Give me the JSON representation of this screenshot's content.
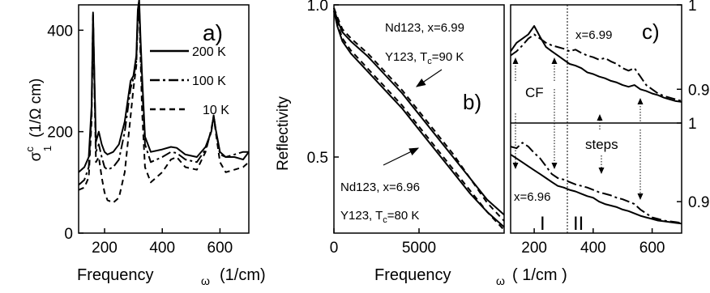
{
  "chart_data": [
    {
      "panel": "a)",
      "type": "line",
      "xlabel": "Frequency",
      "xlabel_symbol": "ω",
      "xlabel_unit": "(1/cm)",
      "ylabel": "σ",
      "ylabel_sub": "1",
      "ylabel_sup": "c",
      "ylabel_unit": "(1/Ω cm)",
      "xlim": [
        110,
        700
      ],
      "ylim": [
        0,
        450
      ],
      "xticks": [
        200,
        400,
        600
      ],
      "yticks": [
        0,
        200,
        400
      ],
      "legend_position": "top-right",
      "series": [
        {
          "name": "200 K",
          "style": "solid",
          "x": [
            110,
            130,
            145,
            155,
            160,
            165,
            170,
            180,
            190,
            200,
            210,
            230,
            250,
            270,
            290,
            300,
            310,
            315,
            320,
            325,
            330,
            340,
            360,
            400,
            430,
            450,
            480,
            520,
            550,
            570,
            578,
            585,
            600,
            620,
            650,
            680,
            700
          ],
          "y": [
            120,
            130,
            150,
            250,
            435,
            300,
            180,
            200,
            175,
            160,
            155,
            160,
            175,
            220,
            300,
            310,
            350,
            440,
            460,
            380,
            310,
            190,
            160,
            165,
            170,
            168,
            155,
            150,
            170,
            200,
            232,
            205,
            160,
            150,
            150,
            145,
            160
          ]
        },
        {
          "name": "100 K",
          "style": "dash-dot",
          "x": [
            110,
            130,
            145,
            155,
            160,
            165,
            170,
            180,
            190,
            200,
            210,
            230,
            250,
            270,
            290,
            300,
            310,
            315,
            320,
            325,
            330,
            340,
            360,
            400,
            430,
            450,
            480,
            520,
            550,
            570,
            578,
            585,
            600,
            620,
            650,
            680,
            700
          ],
          "y": [
            95,
            105,
            130,
            240,
            430,
            290,
            160,
            175,
            150,
            130,
            125,
            130,
            145,
            200,
            285,
            305,
            340,
            430,
            450,
            360,
            290,
            175,
            140,
            150,
            160,
            158,
            145,
            140,
            165,
            200,
            232,
            205,
            155,
            150,
            155,
            160,
            160
          ]
        },
        {
          "name": "10 K",
          "style": "dashed",
          "x": [
            110,
            130,
            145,
            155,
            160,
            165,
            170,
            180,
            190,
            200,
            210,
            230,
            250,
            270,
            290,
            300,
            310,
            315,
            320,
            325,
            330,
            340,
            360,
            400,
            430,
            450,
            480,
            520,
            550,
            570,
            578,
            585,
            600,
            620,
            650,
            680,
            700
          ],
          "y": [
            85,
            90,
            110,
            220,
            425,
            280,
            140,
            150,
            110,
            80,
            65,
            60,
            70,
            120,
            230,
            285,
            330,
            420,
            440,
            340,
            240,
            130,
            100,
            120,
            145,
            150,
            130,
            125,
            160,
            205,
            230,
            200,
            140,
            120,
            125,
            130,
            140
          ]
        }
      ]
    },
    {
      "panel": "b)",
      "type": "line",
      "xlabel": "Frequency",
      "xlabel_symbol": "ω",
      "xlabel_unit": "( 1/cm )",
      "ylabel": "Reflectivity",
      "xlim": [
        0,
        10000
      ],
      "ylim": [
        0.25,
        1.0
      ],
      "xticks": [
        0,
        5000
      ],
      "yticks": [
        0.5,
        1.0
      ],
      "ytick_labels": [
        "0.5",
        "1.0"
      ],
      "annotations": [
        "Nd123, x=6.99",
        "Y123, T",
        "c",
        "=90 K",
        "Nd123, x=6.96",
        "Y123, T",
        "c",
        "=80 K"
      ],
      "series": [
        {
          "name": "Nd123, x=6.99",
          "style": "solid",
          "x": [
            0,
            200,
            500,
            1000,
            2000,
            3000,
            4000,
            5000,
            6000,
            7000,
            8000,
            9000,
            10000
          ],
          "y": [
            0.99,
            0.95,
            0.91,
            0.88,
            0.83,
            0.77,
            0.71,
            0.64,
            0.57,
            0.5,
            0.43,
            0.36,
            0.31
          ]
        },
        {
          "name": "Y123, Tc=90 K",
          "style": "dashed",
          "x": [
            0,
            200,
            500,
            1000,
            2000,
            3000,
            4000,
            5000,
            6000,
            7000,
            8000,
            9000,
            10000
          ],
          "y": [
            0.99,
            0.96,
            0.92,
            0.89,
            0.84,
            0.78,
            0.72,
            0.65,
            0.58,
            0.51,
            0.43,
            0.35,
            0.29
          ]
        },
        {
          "name": "Nd123, x=6.96",
          "style": "solid",
          "x": [
            0,
            200,
            500,
            1000,
            2000,
            3000,
            4000,
            5000,
            6000,
            7000,
            8000,
            9000,
            10000
          ],
          "y": [
            0.98,
            0.93,
            0.88,
            0.84,
            0.78,
            0.72,
            0.66,
            0.59,
            0.52,
            0.45,
            0.38,
            0.32,
            0.27
          ]
        },
        {
          "name": "Y123, Tc=80 K",
          "style": "dashed",
          "x": [
            0,
            200,
            500,
            1000,
            2000,
            3000,
            4000,
            5000,
            6000,
            7000,
            8000,
            9000,
            10000
          ],
          "y": [
            0.98,
            0.94,
            0.89,
            0.85,
            0.79,
            0.73,
            0.67,
            0.6,
            0.53,
            0.46,
            0.39,
            0.32,
            0.26
          ]
        }
      ]
    },
    {
      "panel": "c)",
      "type": "line",
      "xlim": [
        120,
        700
      ],
      "xticks": [
        200,
        400,
        600
      ],
      "annotations": [
        "x=6.99",
        "CF",
        "x=6.96",
        "steps",
        "I",
        "II"
      ],
      "subplots": [
        {
          "position": "upper",
          "ylim": [
            0.86,
            1.0
          ],
          "yticks": [
            0.9,
            1.0
          ],
          "series": [
            {
              "style": "solid",
              "x": [
                120,
                140,
                160,
                180,
                200,
                220,
                240,
                260,
                280,
                300,
                320,
                340,
                360,
                380,
                400,
                420,
                440,
                460,
                480,
                500,
                520,
                540,
                560,
                580,
                600,
                620,
                640,
                660,
                680,
                700
              ],
              "y": [
                0.945,
                0.955,
                0.96,
                0.965,
                0.975,
                0.962,
                0.95,
                0.945,
                0.94,
                0.935,
                0.93,
                0.928,
                0.925,
                0.92,
                0.918,
                0.915,
                0.913,
                0.91,
                0.908,
                0.905,
                0.903,
                0.905,
                0.9,
                0.898,
                0.895,
                0.893,
                0.89,
                0.888,
                0.886,
                0.885
              ]
            },
            {
              "style": "dash-dot",
              "x": [
                120,
                140,
                160,
                180,
                200,
                220,
                240,
                260,
                280,
                300,
                320,
                340,
                360,
                380,
                400,
                420,
                440,
                460,
                480,
                500,
                520,
                540,
                560,
                580,
                600,
                620,
                640,
                660,
                680,
                700
              ],
              "y": [
                0.94,
                0.945,
                0.952,
                0.96,
                0.965,
                0.96,
                0.955,
                0.952,
                0.95,
                0.948,
                0.945,
                0.947,
                0.943,
                0.94,
                0.938,
                0.935,
                0.937,
                0.933,
                0.93,
                0.925,
                0.922,
                0.925,
                0.915,
                0.905,
                0.9,
                0.895,
                0.892,
                0.89,
                0.888,
                0.886
              ]
            }
          ]
        },
        {
          "position": "lower",
          "ylim": [
            0.86,
            1.0
          ],
          "yticks": [
            0.9,
            1.0
          ],
          "series": [
            {
              "style": "solid",
              "x": [
                120,
                140,
                160,
                180,
                200,
                220,
                240,
                260,
                280,
                300,
                320,
                340,
                360,
                380,
                400,
                420,
                440,
                460,
                480,
                500,
                520,
                540,
                560,
                580,
                600,
                620,
                640,
                660,
                680,
                700
              ],
              "y": [
                0.96,
                0.955,
                0.95,
                0.945,
                0.94,
                0.935,
                0.93,
                0.925,
                0.92,
                0.918,
                0.915,
                0.913,
                0.91,
                0.907,
                0.905,
                0.9,
                0.897,
                0.895,
                0.893,
                0.89,
                0.888,
                0.885,
                0.882,
                0.88,
                0.878,
                0.876,
                0.875,
                0.874,
                0.873,
                0.872
              ]
            },
            {
              "style": "dash-dot",
              "x": [
                120,
                140,
                160,
                180,
                200,
                220,
                240,
                260,
                280,
                300,
                320,
                340,
                360,
                380,
                400,
                420,
                440,
                460,
                480,
                500,
                520,
                540,
                560,
                580,
                600,
                620,
                640,
                660,
                680,
                700
              ],
              "y": [
                0.97,
                0.968,
                0.975,
                0.97,
                0.962,
                0.955,
                0.945,
                0.935,
                0.93,
                0.928,
                0.925,
                0.922,
                0.92,
                0.918,
                0.915,
                0.912,
                0.91,
                0.908,
                0.905,
                0.903,
                0.9,
                0.897,
                0.89,
                0.885,
                0.88,
                0.878,
                0.876,
                0.875,
                0.874,
                0.873
              ]
            }
          ]
        }
      ]
    }
  ]
}
